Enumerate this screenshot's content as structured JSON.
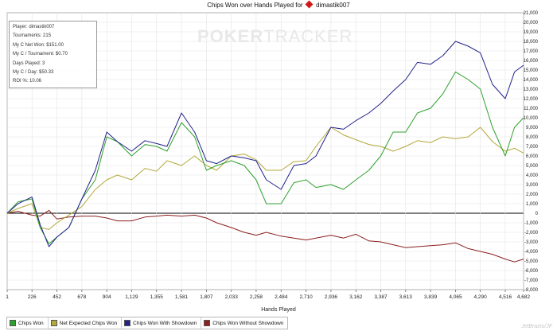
{
  "title": {
    "text": "Chips Won over Hands Played for",
    "player": "dimastik007"
  },
  "stats": [
    "Player: dimastik007",
    "Tournaments: 215",
    "My C Net Won: $151.00",
    "My C / Tournament: $0.70",
    "Days Played: 3",
    "My C / Day: $50.33",
    "ROI %: 10.06"
  ],
  "watermark": {
    "bold": "POKER",
    "light": "TRACKER"
  },
  "brand": "JetBrains/JF",
  "colors": {
    "chips_won": "#2ea02e",
    "net_expected": "#b3a83a",
    "with_showdown": "#22228c",
    "without_showdown": "#8c1f1f",
    "grid": "#e4e4e4",
    "zero_line": "#000000"
  },
  "chart_data": {
    "type": "line",
    "title": "Chips Won over Hands Played for dimastik007",
    "xlabel": "Hands Played",
    "ylabel": "",
    "xlim": [
      1,
      4682
    ],
    "ylim": [
      -8000,
      21000
    ],
    "x_ticks": [
      "1",
      "226",
      "452",
      "678",
      "904",
      "1,129",
      "1,355",
      "1,581",
      "1,807",
      "2,033",
      "2,258",
      "2,484",
      "2,710",
      "2,936",
      "3,162",
      "3,387",
      "3,613",
      "3,839",
      "4,065",
      "4,290",
      "4,516",
      "4,682"
    ],
    "y_ticks": [
      "21,000",
      "20,000",
      "19,000",
      "18,000",
      "17,000",
      "16,000",
      "15,000",
      "14,000",
      "13,000",
      "12,000",
      "11,000",
      "10,000",
      "9,000",
      "8,000",
      "7,000",
      "6,000",
      "5,000",
      "4,000",
      "3,000",
      "2,000",
      "1,000",
      "0",
      "-1,000",
      "-2,000",
      "-3,000",
      "-4,000",
      "-5,000",
      "-6,000",
      "-7,000",
      "-8,000"
    ],
    "grid": true,
    "legend_position": "bottom-left",
    "x": [
      1,
      100,
      226,
      300,
      380,
      452,
      560,
      678,
      800,
      904,
      1000,
      1129,
      1250,
      1355,
      1450,
      1581,
      1700,
      1807,
      1900,
      2033,
      2150,
      2258,
      2350,
      2484,
      2600,
      2710,
      2800,
      2936,
      3050,
      3162,
      3280,
      3387,
      3500,
      3613,
      3720,
      3839,
      3950,
      4065,
      4180,
      4290,
      4400,
      4516,
      4600,
      4682
    ],
    "series": [
      {
        "name": "Chips Won",
        "color_key": "chips_won",
        "values": [
          0,
          1200,
          1500,
          -1500,
          -3200,
          -2500,
          -1500,
          1500,
          3500,
          8000,
          7500,
          6000,
          7200,
          7000,
          6500,
          9500,
          8000,
          4500,
          5000,
          5500,
          5000,
          3500,
          1000,
          1000,
          3200,
          3500,
          2700,
          3000,
          2500,
          3500,
          4500,
          6000,
          8500,
          8500,
          10500,
          11000,
          12500,
          14800,
          14000,
          13000,
          9000,
          6000,
          9000,
          10000
        ]
      },
      {
        "name": "Net Expected Chips Won",
        "color_key": "net_expected",
        "values": [
          0,
          500,
          1000,
          -1500,
          -1700,
          -1000,
          -200,
          700,
          2500,
          3500,
          4000,
          3500,
          4700,
          4400,
          5500,
          5000,
          6000,
          5000,
          4500,
          6000,
          6200,
          5600,
          4500,
          4500,
          5400,
          5500,
          7000,
          9000,
          8200,
          7700,
          7200,
          7000,
          6500,
          7000,
          7600,
          7400,
          8000,
          7800,
          8000,
          9000,
          7500,
          6500,
          6800,
          6300
        ]
      },
      {
        "name": "Chips Won With Showdown",
        "color_key": "with_showdown",
        "values": [
          0,
          1000,
          1700,
          -1200,
          -3500,
          -2500,
          -1500,
          1500,
          4500,
          8500,
          7500,
          6500,
          7600,
          7300,
          7000,
          10500,
          8500,
          5500,
          5200,
          6000,
          5800,
          5500,
          3500,
          2500,
          5000,
          5200,
          6000,
          9000,
          8800,
          9700,
          10500,
          11500,
          12800,
          14000,
          15800,
          15600,
          16500,
          18000,
          17500,
          16800,
          13500,
          12000,
          14800,
          15500
        ]
      },
      {
        "name": "Chips Won Without Showdown",
        "color_key": "without_showdown",
        "values": [
          0,
          200,
          -200,
          -300,
          300,
          -600,
          -400,
          -300,
          -300,
          -500,
          -800,
          -800,
          -400,
          -300,
          -200,
          -300,
          -200,
          -500,
          -1000,
          -1500,
          -2000,
          -2300,
          -2000,
          -2400,
          -2600,
          -2800,
          -2600,
          -2300,
          -2600,
          -2200,
          -2900,
          -3000,
          -3300,
          -3600,
          -3500,
          -3400,
          -3300,
          -3100,
          -3700,
          -4000,
          -4300,
          -4800,
          -5100,
          -4800
        ]
      }
    ]
  }
}
